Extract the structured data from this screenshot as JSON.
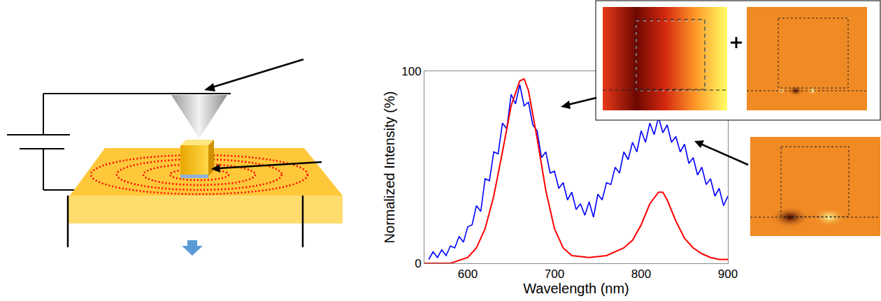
{
  "chart_data": {
    "type": "line",
    "x_label": "Wavelength (nm)",
    "y_label": "Normalized Intensity (%)",
    "xlim": [
      550,
      900
    ],
    "xticks": [
      600,
      700,
      800,
      900
    ],
    "ylim": [
      0,
      100
    ],
    "yticks": [
      0,
      100
    ],
    "grid": false,
    "series": [
      {
        "color": "#0000ff",
        "x": [
          555,
          560,
          565,
          570,
          575,
          580,
          585,
          590,
          595,
          600,
          605,
          610,
          615,
          620,
          625,
          630,
          635,
          640,
          645,
          650,
          655,
          660,
          665,
          670,
          675,
          680,
          685,
          690,
          695,
          700,
          705,
          710,
          715,
          720,
          725,
          730,
          735,
          740,
          745,
          750,
          755,
          760,
          765,
          770,
          775,
          780,
          785,
          790,
          795,
          800,
          805,
          810,
          815,
          820,
          825,
          830,
          835,
          840,
          845,
          850,
          855,
          860,
          865,
          870,
          875,
          880,
          885,
          890,
          895,
          900
        ],
        "values": [
          2,
          6,
          3,
          7,
          4,
          9,
          8,
          14,
          11,
          19,
          20,
          30,
          27,
          44,
          43,
          58,
          57,
          73,
          70,
          88,
          83,
          93,
          82,
          84,
          72,
          69,
          55,
          58,
          47,
          48,
          39,
          42,
          33,
          37,
          28,
          31,
          25,
          32,
          24,
          36,
          33,
          42,
          41,
          50,
          47,
          58,
          54,
          63,
          58,
          69,
          63,
          73,
          67,
          76,
          68,
          72,
          63,
          66,
          58,
          62,
          52,
          55,
          46,
          50,
          41,
          44,
          35,
          39,
          30,
          35
        ]
      },
      {
        "color": "#ff0000",
        "x": [
          550,
          580,
          600,
          610,
          620,
          630,
          640,
          650,
          660,
          665,
          670,
          680,
          690,
          700,
          710,
          720,
          740,
          760,
          780,
          790,
          800,
          810,
          820,
          825,
          830,
          840,
          850,
          860,
          870,
          880,
          890,
          900
        ],
        "values": [
          0,
          0,
          3,
          8,
          18,
          35,
          58,
          82,
          95,
          96,
          90,
          65,
          38,
          18,
          8,
          4,
          3,
          4,
          8,
          12,
          20,
          31,
          37,
          37,
          33,
          22,
          13,
          8,
          5,
          3,
          2,
          2
        ]
      }
    ]
  }
}
